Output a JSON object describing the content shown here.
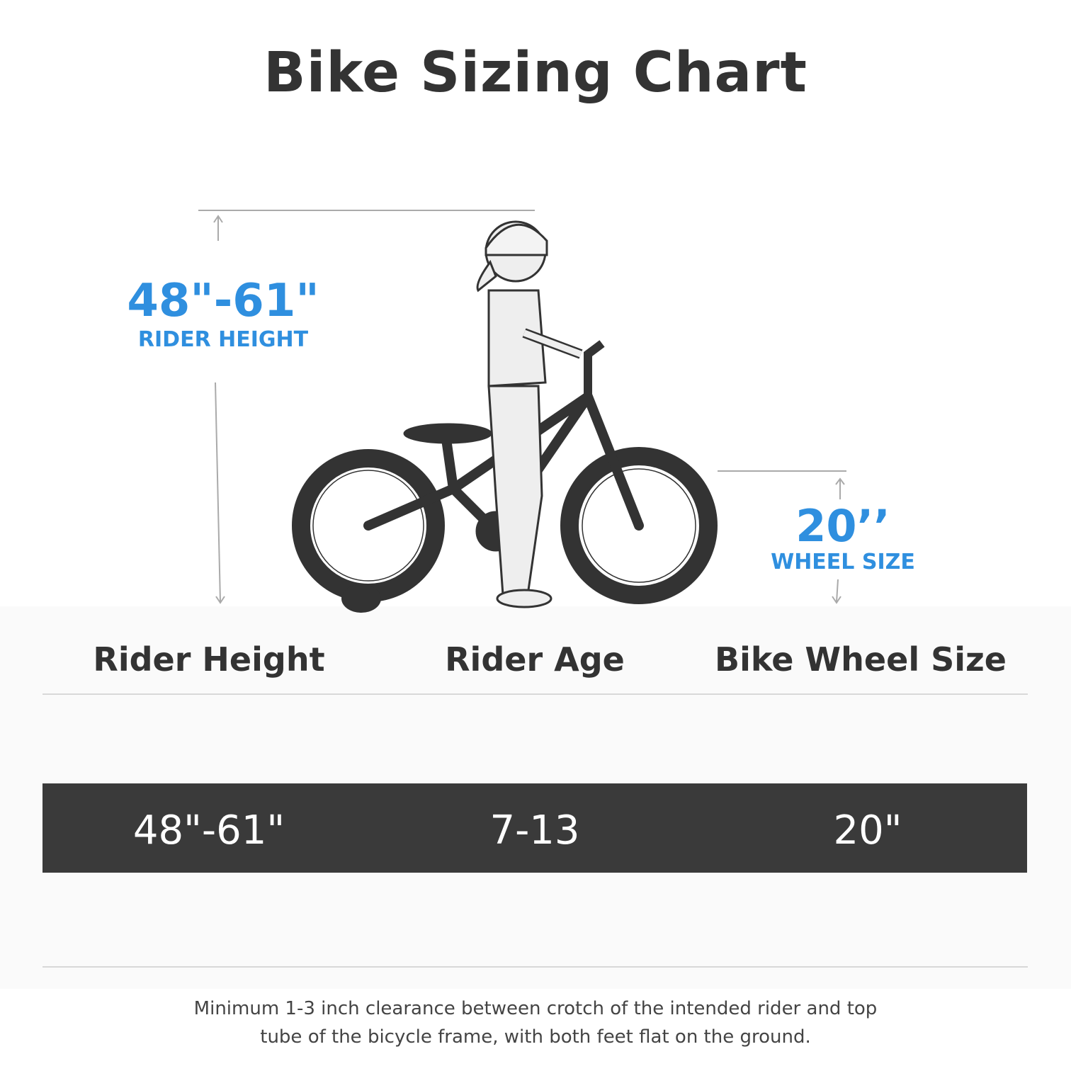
{
  "title": "Bike Sizing Chart",
  "illustration": {
    "rider_height_value": "48\"-61\"",
    "rider_height_label": "RIDER HEIGHT",
    "wheel_size_value": "20’’",
    "wheel_size_label": "WHEEL SIZE",
    "accent_color": "#2f8fdf"
  },
  "table": {
    "headers": [
      "Rider Height",
      "Rider Age",
      "Bike Wheel Size"
    ],
    "row": [
      "48\"-61\"",
      "7-13",
      "20\""
    ]
  },
  "note": {
    "line1": "Minimum 1-3 inch clearance between crotch of the intended rider and top",
    "line2": "tube of the bicycle frame, with both feet flat on the ground."
  }
}
